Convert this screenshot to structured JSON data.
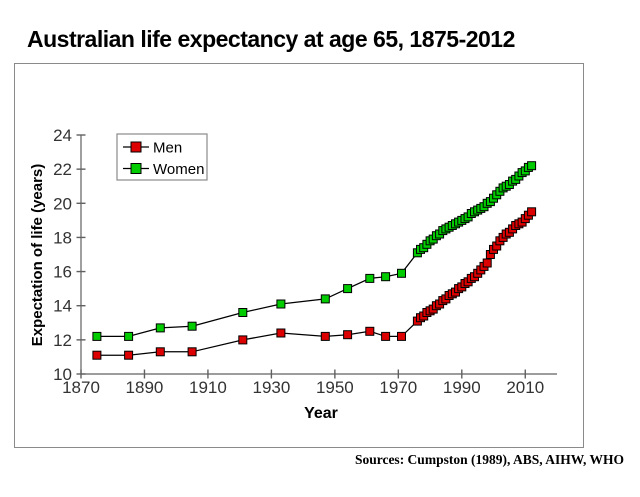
{
  "title": "Australian life expectancy at age 65, 1875-2012",
  "source_note": "Sources: Cumpston (1989), ABS, AIHW, WHO",
  "colors": {
    "men": "#dd0000",
    "women": "#00cc00",
    "line": "#000000",
    "axis": "#606060",
    "tick_text": "#333333",
    "frame_border": "#8a8a8a",
    "legend_border": "#8a8a8a"
  },
  "chart_data": {
    "type": "line",
    "title": "",
    "xlabel": "Year",
    "ylabel": "Expectation of life (years)",
    "xlim": [
      1870,
      2020
    ],
    "ylim": [
      10,
      24
    ],
    "x_ticks": [
      1870,
      1890,
      1910,
      1930,
      1950,
      1970,
      1990,
      2010
    ],
    "y_ticks": [
      10,
      12,
      14,
      16,
      18,
      20,
      22,
      24
    ],
    "grid": false,
    "marker": "square",
    "legend_position": "top-left-inside",
    "series": [
      {
        "name": "Men",
        "color": "#dd0000",
        "points": [
          [
            1875,
            11.1
          ],
          [
            1885,
            11.1
          ],
          [
            1895,
            11.3
          ],
          [
            1905,
            11.3
          ],
          [
            1921,
            12.0
          ],
          [
            1933,
            12.4
          ],
          [
            1947,
            12.2
          ],
          [
            1954,
            12.3
          ],
          [
            1961,
            12.5
          ],
          [
            1966,
            12.2
          ],
          [
            1971,
            12.2
          ],
          [
            1976,
            13.1
          ],
          [
            1977,
            13.3
          ],
          [
            1978,
            13.4
          ],
          [
            1979,
            13.6
          ],
          [
            1980,
            13.7
          ],
          [
            1981,
            13.8
          ],
          [
            1982,
            14.0
          ],
          [
            1983,
            14.1
          ],
          [
            1984,
            14.3
          ],
          [
            1985,
            14.4
          ],
          [
            1986,
            14.6
          ],
          [
            1987,
            14.7
          ],
          [
            1988,
            14.8
          ],
          [
            1989,
            15.0
          ],
          [
            1990,
            15.1
          ],
          [
            1991,
            15.3
          ],
          [
            1992,
            15.4
          ],
          [
            1993,
            15.6
          ],
          [
            1994,
            15.7
          ],
          [
            1995,
            15.9
          ],
          [
            1996,
            16.1
          ],
          [
            1997,
            16.3
          ],
          [
            1998,
            16.5
          ],
          [
            1999,
            17.0
          ],
          [
            2000,
            17.3
          ],
          [
            2001,
            17.5
          ],
          [
            2002,
            17.8
          ],
          [
            2003,
            18.0
          ],
          [
            2004,
            18.2
          ],
          [
            2005,
            18.3
          ],
          [
            2006,
            18.5
          ],
          [
            2007,
            18.7
          ],
          [
            2008,
            18.8
          ],
          [
            2009,
            18.9
          ],
          [
            2010,
            19.1
          ],
          [
            2011,
            19.3
          ],
          [
            2012,
            19.5
          ]
        ]
      },
      {
        "name": "Women",
        "color": "#00cc00",
        "points": [
          [
            1875,
            12.2
          ],
          [
            1885,
            12.2
          ],
          [
            1895,
            12.7
          ],
          [
            1905,
            12.8
          ],
          [
            1921,
            13.6
          ],
          [
            1933,
            14.1
          ],
          [
            1947,
            14.4
          ],
          [
            1954,
            15.0
          ],
          [
            1961,
            15.6
          ],
          [
            1966,
            15.7
          ],
          [
            1971,
            15.9
          ],
          [
            1976,
            17.1
          ],
          [
            1977,
            17.3
          ],
          [
            1978,
            17.4
          ],
          [
            1979,
            17.6
          ],
          [
            1980,
            17.8
          ],
          [
            1981,
            17.9
          ],
          [
            1982,
            18.1
          ],
          [
            1983,
            18.2
          ],
          [
            1984,
            18.4
          ],
          [
            1985,
            18.5
          ],
          [
            1986,
            18.6
          ],
          [
            1987,
            18.7
          ],
          [
            1988,
            18.8
          ],
          [
            1989,
            18.9
          ],
          [
            1990,
            19.0
          ],
          [
            1991,
            19.1
          ],
          [
            1992,
            19.2
          ],
          [
            1993,
            19.4
          ],
          [
            1994,
            19.5
          ],
          [
            1995,
            19.6
          ],
          [
            1996,
            19.7
          ],
          [
            1997,
            19.8
          ],
          [
            1998,
            20.0
          ],
          [
            1999,
            20.1
          ],
          [
            2000,
            20.3
          ],
          [
            2001,
            20.5
          ],
          [
            2002,
            20.7
          ],
          [
            2003,
            20.9
          ],
          [
            2004,
            21.0
          ],
          [
            2005,
            21.1
          ],
          [
            2006,
            21.3
          ],
          [
            2007,
            21.4
          ],
          [
            2008,
            21.6
          ],
          [
            2009,
            21.8
          ],
          [
            2010,
            21.9
          ],
          [
            2011,
            22.1
          ],
          [
            2012,
            22.2
          ]
        ]
      }
    ]
  }
}
